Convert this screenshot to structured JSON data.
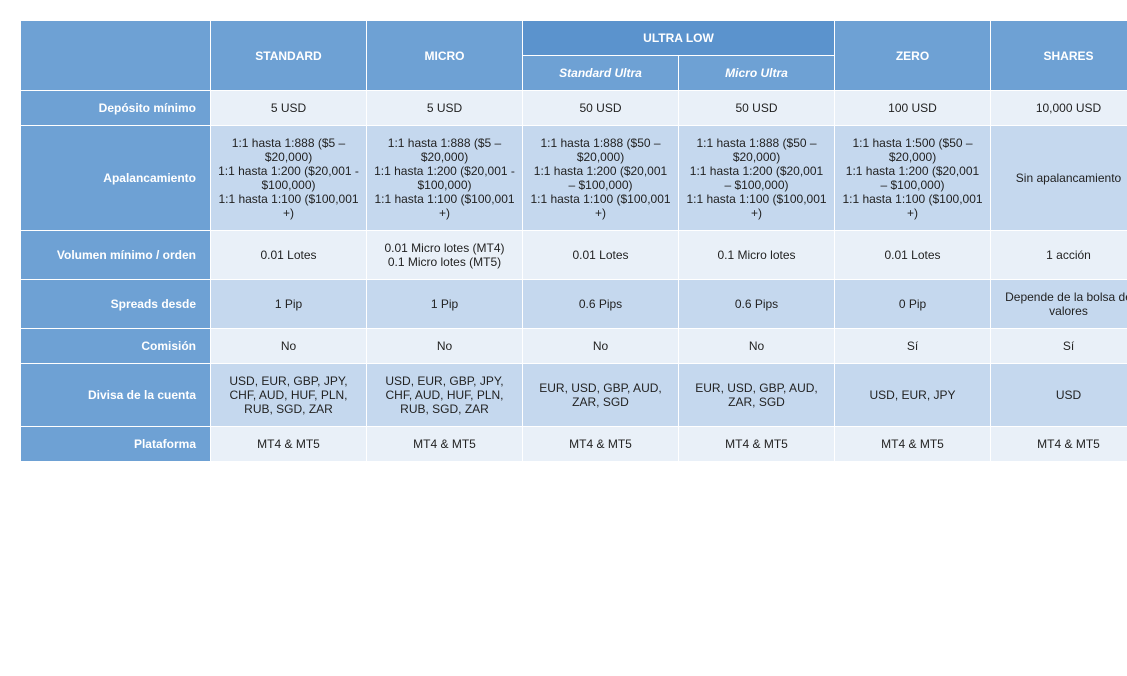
{
  "table": {
    "ultra_low_group_label": "ULTRA LOW",
    "columns": {
      "standard": "STANDARD",
      "micro": "MICRO",
      "standard_ultra": "Standard Ultra",
      "micro_ultra": "Micro Ultra",
      "zero": "ZERO",
      "shares": "SHARES"
    },
    "rows": {
      "deposito_minimo": {
        "label": "Depósito mínimo",
        "standard": "5 USD",
        "micro": "5 USD",
        "standard_ultra": "50 USD",
        "micro_ultra": "50 USD",
        "zero": "100 USD",
        "shares": "10,000 USD"
      },
      "apalancamiento": {
        "label": "Apalancamiento",
        "standard": "1:1 hasta 1:888 ($5 – $20,000)\n1:1 hasta 1:200 ($20,001 - $100,000)\n1:1 hasta 1:100 ($100,001 +)",
        "micro": "1:1 hasta 1:888 ($5 – $20,000)\n1:1 hasta 1:200 ($20,001 - $100,000)\n1:1 hasta 1:100 ($100,001 +)",
        "standard_ultra": "1:1 hasta 1:888 ($50 – $20,000)\n1:1 hasta 1:200 ($20,001 – $100,000)\n1:1 hasta 1:100 ($100,001 +)",
        "micro_ultra": "1:1 hasta 1:888 ($50 – $20,000)\n1:1 hasta 1:200 ($20,001 – $100,000)\n1:1 hasta 1:100 ($100,001 +)",
        "zero": "1:1 hasta 1:500 ($50 – $20,000)\n1:1 hasta 1:200 ($20,001 – $100,000)\n1:1 hasta 1:100 ($100,001 +)",
        "shares": "Sin apalancamiento"
      },
      "volumen_minimo": {
        "label": "Volumen mínimo / orden",
        "standard": "0.01 Lotes",
        "micro": "0.01 Micro lotes (MT4)\n0.1 Micro lotes (MT5)",
        "standard_ultra": "0.01 Lotes",
        "micro_ultra": "0.1 Micro lotes",
        "zero": "0.01 Lotes",
        "shares": "1 acción"
      },
      "spreads_desde": {
        "label": "Spreads desde",
        "standard": "1 Pip",
        "micro": "1 Pip",
        "standard_ultra": "0.6 Pips",
        "micro_ultra": "0.6 Pips",
        "zero": "0 Pip",
        "shares": "Depende de la bolsa de valores"
      },
      "comision": {
        "label": "Comisión",
        "standard": "No",
        "micro": "No",
        "standard_ultra": "No",
        "micro_ultra": "No",
        "zero": "Sí",
        "shares": "Sí"
      },
      "divisa": {
        "label": "Divisa de la cuenta",
        "standard": "USD, EUR, GBP, JPY, CHF,​ AUD, HUF, PLN, RUB, SGD, ZAR",
        "micro": "USD, EUR, GBP, JPY, CHF,​ AUD, HUF, PLN, RUB, SGD, ZAR",
        "standard_ultra": "EUR, USD, GBP, AUD, ZAR, SGD",
        "micro_ultra": "EUR, USD, GBP, AUD, ZAR, SGD",
        "zero": "USD, EUR, JPY",
        "shares": "USD"
      },
      "plataforma": {
        "label": "Plataforma",
        "standard": "MT4 & MT5",
        "micro": "MT4 & MT5",
        "standard_ultra": "MT4 & MT5",
        "micro_ultra": "MT4 & MT5",
        "zero": "MT4 & MT5",
        "shares": "MT4 & MT5"
      }
    },
    "alternating": {
      "light_bg": "#e9f0f8",
      "dark_bg": "#c5d8ee"
    },
    "colors": {
      "header_bg": "#6ea1d4",
      "ultra_group_bg": "#5b93cd",
      "header_text": "#ffffff",
      "cell_text": "#222222",
      "border": "#ffffff"
    },
    "font": {
      "family": "Verdana, Arial, sans-serif",
      "size_pt": 9
    }
  }
}
